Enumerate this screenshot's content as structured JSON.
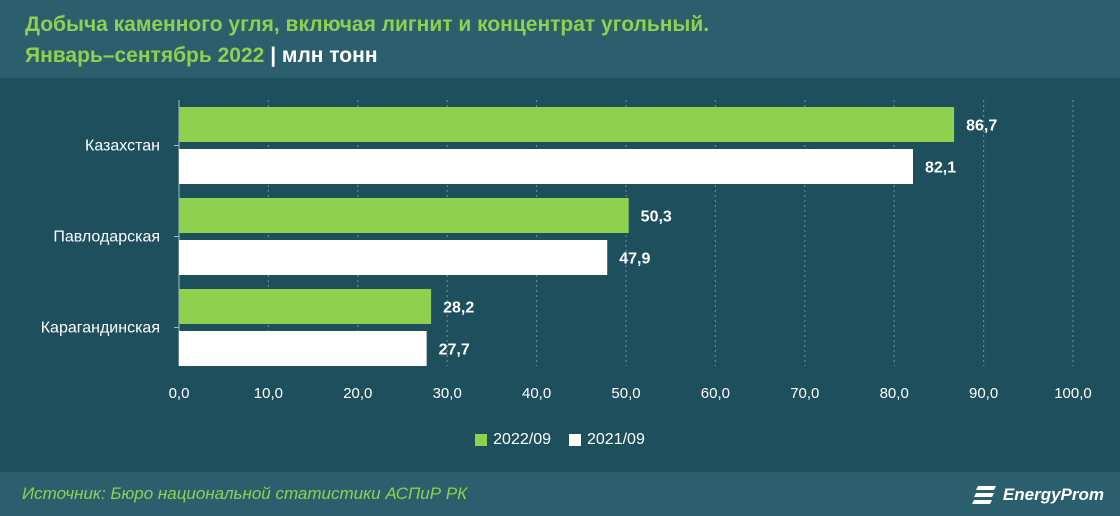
{
  "header": {
    "title_line1": "Добыча каменного угля, включая лигнит и концентрат угольный.",
    "title_line2_period": "Январь–сентябрь 2022",
    "title_line2_separator": " | ",
    "title_line2_unit": "млн тонн"
  },
  "colors": {
    "background": "#1d4f5c",
    "header_band": "#2b5f6d",
    "series_2022": "#8fd14f",
    "series_2021": "#ffffff",
    "grid": "#5d8c98"
  },
  "chart_data": {
    "type": "bar",
    "orientation": "horizontal",
    "categories": [
      "Казахстан",
      "Павлодарская",
      "Карагандинская"
    ],
    "series": [
      {
        "name": "2022/09",
        "values": [
          86.7,
          50.3,
          28.2
        ],
        "labels": [
          "86,7",
          "50,3",
          "28,2"
        ],
        "color": "#8fd14f"
      },
      {
        "name": "2021/09",
        "values": [
          82.1,
          47.9,
          27.7
        ],
        "labels": [
          "82,1",
          "47,9",
          "27,7"
        ],
        "color": "#ffffff"
      }
    ],
    "xlim": [
      0,
      100
    ],
    "xticks": [
      0,
      10,
      20,
      30,
      40,
      50,
      60,
      70,
      80,
      90,
      100
    ],
    "xtick_labels": [
      "0,0",
      "10,0",
      "20,0",
      "30,0",
      "40,0",
      "50,0",
      "60,0",
      "70,0",
      "80,0",
      "90,0",
      "100,0"
    ],
    "grid": "vertical dotted",
    "legend_position": "bottom-center"
  },
  "legend": {
    "items": [
      {
        "label": "2022/09",
        "color": "#8fd14f"
      },
      {
        "label": "2021/09",
        "color": "#ffffff"
      }
    ]
  },
  "footer": {
    "source": "Источник: Бюро национальной статистики АСПиР РК",
    "logo_text": "EnergyProm",
    "logo_icon": "energyprom-logo-icon"
  }
}
